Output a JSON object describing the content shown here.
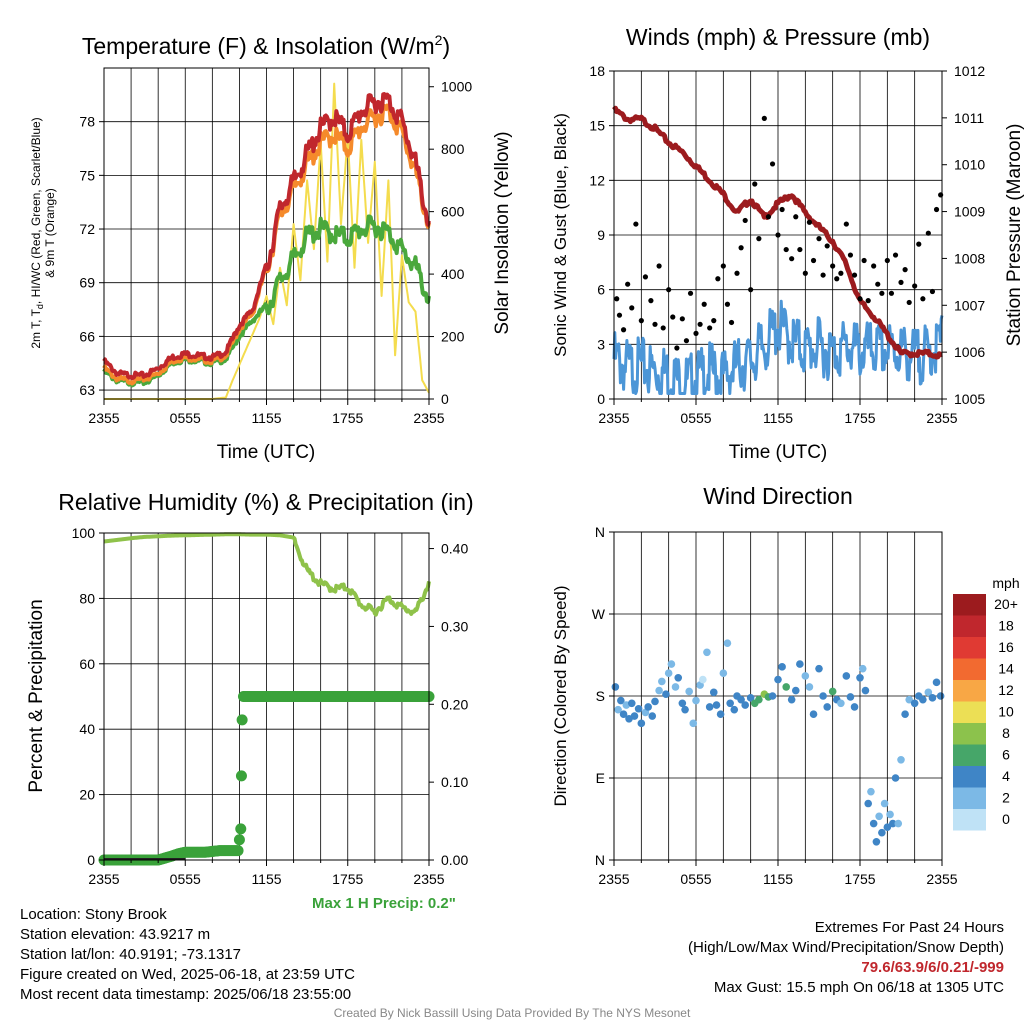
{
  "chart_data": [
    {
      "type": "line",
      "title": "Temperature (F) & Insolation (W/m",
      "title_sup": "2",
      "title_end": ")",
      "xlabel": "Time (UTC)",
      "ylabel_line1": "2m T, T",
      "ylabel_sub": "d",
      "ylabel_line1_end": ", HI/WC (Red, Green, Scarlet/Blue)",
      "ylabel_line2": "& 9m T (Orange)",
      "ylabel_right": "Solar Insolation (Yellow)",
      "x_ticks": [
        "2355",
        "0555",
        "1155",
        "1755",
        "2355"
      ],
      "ylim": [
        62.5,
        81
      ],
      "y_ticks": [
        63,
        66,
        69,
        72,
        75,
        78
      ],
      "y2lim": [
        0,
        1060
      ],
      "y2_ticks": [
        0,
        200,
        400,
        600,
        800,
        1000
      ],
      "grid": true,
      "series": [
        {
          "key": "temp_2m",
          "color": "#c0272d",
          "hours": [
            0,
            1,
            2,
            3,
            4,
            5,
            6,
            7,
            8,
            9,
            10,
            11,
            12,
            13,
            14,
            15,
            16,
            17,
            18,
            19,
            20,
            21,
            22,
            23,
            24
          ],
          "values": [
            64.7,
            64.0,
            63.9,
            63.9,
            64.3,
            64.9,
            65.1,
            65.0,
            64.9,
            65.2,
            66.7,
            67.6,
            70.1,
            73.4,
            74.9,
            76.5,
            77.9,
            78.6,
            77.6,
            78.9,
            79.4,
            79.5,
            78.3,
            76.0,
            72.5
          ]
        },
        {
          "key": "temp_9m",
          "color": "#f58a2b",
          "hours": [
            0,
            1,
            2,
            3,
            4,
            5,
            6,
            7,
            8,
            9,
            10,
            11,
            12,
            13,
            14,
            15,
            16,
            17,
            18,
            19,
            20,
            21,
            22,
            23,
            24
          ],
          "values": [
            64.3,
            63.7,
            63.6,
            63.7,
            64.0,
            64.7,
            64.9,
            64.8,
            64.7,
            65.0,
            66.5,
            67.4,
            70.0,
            73.0,
            74.5,
            75.9,
            77.1,
            77.6,
            76.8,
            78.0,
            78.6,
            78.9,
            77.7,
            75.5,
            72.4
          ]
        },
        {
          "key": "dewpoint",
          "color": "#4aa83c",
          "hours": [
            0,
            1,
            2,
            3,
            4,
            5,
            6,
            7,
            8,
            9,
            10,
            11,
            12,
            13,
            14,
            15,
            16,
            17,
            18,
            19,
            20,
            21,
            22,
            23,
            24
          ],
          "values": [
            64.1,
            63.6,
            63.5,
            63.5,
            63.9,
            64.6,
            64.8,
            64.7,
            64.6,
            64.8,
            66.1,
            67.0,
            67.8,
            69.4,
            70.6,
            71.9,
            72.3,
            72.0,
            71.8,
            72.3,
            72.5,
            72.1,
            71.1,
            70.2,
            68.3
          ]
        },
        {
          "key": "solar",
          "color": "#f4dc4e",
          "axis": "right",
          "hours": [
            0,
            1,
            2,
            3,
            4,
            5,
            6,
            7,
            8,
            9,
            9.5,
            10,
            10.5,
            11,
            11.5,
            12,
            12.5,
            13,
            13.5,
            14,
            14.5,
            15,
            15.5,
            16,
            16.5,
            17,
            17.5,
            18,
            18.5,
            19,
            19.5,
            20,
            20.5,
            21,
            21.5,
            22,
            22.5,
            23,
            23.5,
            24
          ],
          "values": [
            0,
            0,
            0,
            0,
            0,
            0,
            0,
            0,
            0,
            5,
            60,
            110,
            160,
            210,
            260,
            330,
            240,
            420,
            300,
            560,
            380,
            700,
            480,
            820,
            440,
            1010,
            560,
            840,
            420,
            830,
            500,
            760,
            330,
            700,
            140,
            460,
            310,
            280,
            60,
            20
          ]
        }
      ]
    },
    {
      "type": "line",
      "title": "Winds (mph) & Pressure (mb)",
      "xlabel": "Time (UTC)",
      "ylabel": "Sonic Wind & Gust (Blue, Black)",
      "ylabel_right": "Station Pressure (Maroon)",
      "x_ticks": [
        "2355",
        "0555",
        "1155",
        "1755",
        "2355"
      ],
      "ylim": [
        0,
        18
      ],
      "y_ticks": [
        0,
        3,
        6,
        9,
        12,
        15,
        18
      ],
      "y2lim": [
        1005,
        1012
      ],
      "y2_ticks": [
        1005,
        1006,
        1007,
        1008,
        1009,
        1010,
        1011,
        1012
      ],
      "grid": true,
      "series": [
        {
          "key": "wind",
          "color": "#4c96d7",
          "hours": [
            0,
            1,
            2,
            3,
            4,
            5,
            6,
            7,
            8,
            9,
            10,
            11,
            12,
            13,
            14,
            15,
            16,
            17,
            18,
            19,
            20,
            21,
            22,
            23,
            24
          ],
          "values": [
            3.0,
            2.5,
            2.6,
            2.3,
            2.2,
            1.6,
            1.9,
            2.3,
            2.0,
            2.6,
            2.9,
            3.7,
            4.8,
            4.0,
            3.5,
            3.7,
            3.3,
            3.7,
            3.4,
            3.5,
            3.5,
            3.4,
            3.1,
            3.3,
            4.0
          ]
        },
        {
          "key": "pressure",
          "color": "#9c1b1e",
          "axis": "right",
          "hours": [
            0,
            1,
            2,
            3,
            4,
            5,
            6,
            7,
            8,
            9,
            10,
            11,
            12,
            13,
            14,
            15,
            16,
            17,
            18,
            19,
            20,
            21,
            22,
            23,
            24
          ],
          "values": [
            1011.2,
            1011.0,
            1011.0,
            1010.8,
            1010.5,
            1010.3,
            1010.0,
            1009.7,
            1009.4,
            1009.0,
            1009.3,
            1008.9,
            1009.2,
            1009.4,
            1009.0,
            1008.7,
            1008.4,
            1007.9,
            1007.1,
            1006.8,
            1006.4,
            1006.0,
            1006.0,
            1006.0,
            1005.95
          ]
        },
        {
          "key": "gust",
          "color": "#000000",
          "type": "scatter",
          "hours": [
            0.2,
            0.4,
            0.7,
            1.0,
            1.3,
            1.6,
            2.0,
            2.3,
            2.7,
            3.0,
            3.3,
            3.6,
            4.0,
            4.3,
            4.6,
            5.0,
            5.3,
            5.6,
            6.0,
            6.3,
            6.6,
            7.0,
            7.3,
            7.6,
            8.0,
            8.3,
            8.6,
            9.0,
            9.3,
            9.6,
            10.0,
            10.3,
            10.6,
            11.0,
            11.3,
            11.6,
            12.0,
            12.3,
            12.6,
            13.0,
            13.3,
            13.6,
            14.0,
            14.3,
            14.6,
            15.0,
            15.3,
            15.6,
            16.0,
            16.3,
            16.6,
            17.0,
            17.3,
            17.6,
            18.0,
            18.3,
            18.6,
            19.0,
            19.3,
            19.6,
            20.0,
            20.3,
            20.6,
            21.0,
            21.3,
            21.6,
            22.0,
            22.3,
            22.6,
            23.0,
            23.3,
            23.6,
            23.9
          ],
          "values": [
            5.5,
            4.6,
            3.8,
            6.3,
            5.0,
            9.6,
            4.3,
            6.7,
            5.4,
            4.1,
            7.3,
            3.9,
            6.0,
            4.5,
            2.8,
            4.4,
            3.2,
            5.8,
            3.6,
            4.1,
            5.2,
            3.9,
            4.3,
            6.6,
            7.3,
            5.2,
            4.2,
            6.9,
            8.3,
            9.8,
            6.0,
            11.8,
            8.8,
            15.4,
            10.0,
            12.9,
            9.0,
            10.4,
            8.2,
            7.7,
            10.0,
            8.2,
            6.9,
            9.7,
            7.6,
            8.8,
            6.8,
            8.4,
            7.3,
            6.6,
            6.9,
            9.6,
            7.9,
            6.8,
            5.5,
            7.6,
            5.4,
            7.3,
            6.3,
            5.8,
            7.6,
            5.8,
            7.9,
            6.4,
            7.1,
            5.3,
            6.2,
            8.5,
            5.5,
            9.1,
            5.9,
            10.4,
            11.2
          ]
        }
      ]
    },
    {
      "type": "line",
      "title": "Relative Humidity (%) & Precipitation (in)",
      "xlabel": "",
      "ylabel": "Percent & Precipitation",
      "x_ticks": [
        "2355",
        "0555",
        "1155",
        "1755",
        "2355"
      ],
      "ylim": [
        0,
        100
      ],
      "y_ticks": [
        0,
        20,
        40,
        60,
        80,
        100
      ],
      "y2lim": [
        0,
        0.42
      ],
      "y2_ticks": [
        "0.00",
        "0.10",
        "0.20",
        "0.30",
        "0.40"
      ],
      "grid": true,
      "series": [
        {
          "key": "rh",
          "color": "#8fc24a",
          "hours": [
            0,
            1,
            2,
            3,
            4,
            5,
            6,
            7,
            8,
            9,
            10,
            11,
            12,
            13,
            14,
            15,
            16,
            17,
            18,
            19,
            20,
            21,
            22,
            23,
            24
          ],
          "values": [
            97.4,
            97.9,
            98.4,
            98.8,
            99.0,
            99.2,
            99.3,
            99.4,
            99.5,
            99.6,
            99.6,
            99.5,
            99.5,
            99.3,
            98.6,
            89.0,
            85.0,
            83.5,
            84.0,
            78.6,
            76.5,
            80.5,
            77.8,
            76.2,
            85.3
          ]
        },
        {
          "key": "precip",
          "color": "#3aa23a",
          "type": "scatter",
          "hours": [
            0,
            1,
            2,
            3,
            4,
            5,
            5.5,
            6,
            6.5,
            7,
            7.5,
            8,
            8.5,
            9,
            9.5,
            9.9,
            10.1,
            10.15,
            10.2,
            10.3,
            10.6,
            11,
            12,
            13,
            14,
            15,
            16,
            17,
            18,
            19,
            20,
            21,
            22,
            23,
            24
          ],
          "values": [
            0,
            0,
            0,
            0,
            0,
            0.005,
            0.008,
            0.01,
            0.01,
            0.01,
            0.01,
            0.011,
            0.012,
            0.012,
            0.012,
            0.012,
            0.04,
            0.108,
            0.18,
            0.21,
            0.21,
            0.21,
            0.21,
            0.21,
            0.21,
            0.21,
            0.21,
            0.21,
            0.21,
            0.21,
            0.21,
            0.21,
            0.21,
            0.21,
            0.21
          ]
        }
      ]
    },
    {
      "type": "scatter",
      "title": "Wind Direction",
      "xlabel": "",
      "ylabel": "Direction (Colored By Speed)",
      "x_ticks": [
        "2355",
        "0555",
        "1155",
        "1755",
        "2355"
      ],
      "y_ticks": [
        "N",
        "E",
        "S",
        "W",
        "N"
      ],
      "ylim": [
        0,
        360
      ],
      "grid": true,
      "legend_title": "mph",
      "legend_labels": [
        "20+",
        "18",
        "16",
        "14",
        "12",
        "10",
        "8",
        "6",
        "4",
        "2",
        "0"
      ],
      "legend_colors": [
        "#9c1b1e",
        "#c0272d",
        "#e03a33",
        "#f26a30",
        "#f8a745",
        "#ecdf55",
        "#8cc24c",
        "#46a669",
        "#3f85c6",
        "#7cb9e6",
        "#bfe2f6"
      ],
      "points": {
        "hours": [
          0.1,
          0.3,
          0.5,
          0.7,
          0.9,
          1.1,
          1.3,
          1.5,
          1.8,
          2.0,
          2.3,
          2.5,
          2.8,
          3.0,
          3.3,
          3.5,
          3.8,
          4.0,
          4.2,
          4.5,
          4.7,
          5.0,
          5.2,
          5.5,
          5.8,
          6.0,
          6.3,
          6.5,
          6.8,
          7.0,
          7.3,
          7.5,
          7.8,
          8.0,
          8.3,
          8.5,
          8.8,
          9.0,
          9.3,
          9.6,
          10.0,
          10.3,
          10.6,
          11.0,
          11.3,
          11.6,
          12.0,
          12.3,
          12.6,
          13.0,
          13.3,
          13.6,
          14.0,
          14.3,
          14.6,
          15.0,
          15.3,
          15.6,
          16.0,
          16.3,
          16.6,
          17.0,
          17.3,
          17.6,
          18.0,
          18.2,
          18.4,
          18.6,
          18.8,
          19.0,
          19.2,
          19.4,
          19.6,
          19.8,
          20.0,
          20.2,
          20.4,
          20.6,
          20.8,
          21.0,
          21.3,
          21.6,
          22.0,
          22.3,
          22.6,
          23.0,
          23.3,
          23.6,
          23.9
        ],
        "values": [
          190,
          165,
          175,
          160,
          170,
          155,
          172,
          158,
          166,
          150,
          162,
          168,
          158,
          174,
          186,
          196,
          182,
          205,
          215,
          190,
          200,
          172,
          165,
          185,
          150,
          175,
          192,
          198,
          228,
          168,
          184,
          170,
          160,
          205,
          238,
          172,
          165,
          180,
          176,
          170,
          178,
          172,
          176,
          182,
          179,
          180,
          198,
          212,
          190,
          176,
          186,
          215,
          202,
          190,
          160,
          210,
          180,
          168,
          185,
          176,
          172,
          202,
          179,
          168,
          200,
          210,
          186,
          62,
          75,
          40,
          20,
          48,
          30,
          62,
          36,
          50,
          40,
          90,
          40,
          110,
          160,
          176,
          172,
          180,
          176,
          184,
          178,
          195,
          180
        ],
        "speeds": [
          3,
          2,
          3,
          3,
          2,
          3,
          3,
          4,
          3,
          3,
          2,
          3,
          4,
          3,
          2,
          1,
          3,
          2,
          1,
          2,
          3,
          3,
          4,
          2,
          1,
          2,
          1,
          0,
          2,
          3,
          3,
          4,
          3,
          2,
          1,
          3,
          4,
          3,
          4,
          3,
          4,
          5,
          6,
          7,
          6,
          4,
          3,
          4,
          5,
          3,
          4,
          3,
          2,
          1,
          3,
          4,
          3,
          4,
          5,
          3,
          2,
          4,
          3,
          4,
          3,
          2,
          3,
          3,
          2,
          4,
          3,
          2,
          3,
          2,
          3,
          2,
          4,
          3,
          2,
          1,
          3,
          2,
          3,
          4,
          3,
          2,
          3,
          4,
          3
        ]
      }
    }
  ],
  "info": {
    "location": "Location: Stony Brook",
    "elevation": "Station elevation: 43.9217 m",
    "latlon": "Station lat/lon: 40.9191; -73.1317",
    "created": "Figure created on Wed, 2025-06-18, at 23:59 UTC",
    "recent": "Most recent data timestamp: 2025/06/18 23:55:00"
  },
  "extremes": {
    "title": "Extremes For Past 24 Hours",
    "subtitle": "(High/Low/Max Wind/Precipitation/Snow Depth)",
    "values": "79.6/63.9/6/0.21/-999",
    "max_gust": "Max Gust: 15.5 mph On 06/18 at 1305 UTC"
  },
  "max_precip": "Max 1 H Precip: 0.2\"",
  "credit": "Created By Nick Bassill Using Data Provided By The NYS Mesonet"
}
